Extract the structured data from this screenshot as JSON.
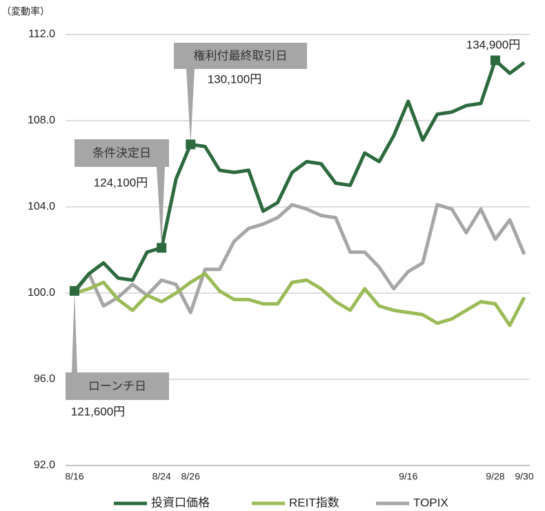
{
  "chart_data": {
    "type": "line",
    "y_axis_label": "（変動率）",
    "categories": [
      "8/16",
      null,
      null,
      null,
      null,
      null,
      "8/24",
      null,
      "8/26",
      null,
      null,
      null,
      null,
      null,
      null,
      null,
      null,
      null,
      null,
      null,
      null,
      null,
      null,
      "9/16",
      null,
      null,
      null,
      null,
      null,
      "9/28",
      null,
      "9/30"
    ],
    "series": [
      {
        "name": "投資口価格",
        "color": "#2d6a3e",
        "values": [
          100.1,
          100.9,
          101.4,
          100.7,
          100.6,
          101.9,
          102.1,
          105.3,
          106.9,
          106.8,
          105.7,
          105.6,
          105.7,
          103.8,
          104.2,
          105.6,
          106.1,
          106.0,
          105.1,
          105.0,
          106.5,
          106.1,
          107.3,
          108.9,
          107.1,
          108.3,
          108.4,
          108.7,
          108.8,
          110.8,
          110.2,
          110.7
        ]
      },
      {
        "name": "REIT指数",
        "color": "#9bbb59",
        "values": [
          100.0,
          100.2,
          100.5,
          99.7,
          99.2,
          99.9,
          99.6,
          100.0,
          100.5,
          100.9,
          100.1,
          99.7,
          99.7,
          99.5,
          99.5,
          100.5,
          100.6,
          100.2,
          99.6,
          99.2,
          100.2,
          99.4,
          99.2,
          99.1,
          99.0,
          98.6,
          98.8,
          99.2,
          99.6,
          99.5,
          98.5,
          99.8
        ]
      },
      {
        "name": "TOPIX",
        "color": "#a6a6a6",
        "values": [
          100.0,
          100.9,
          99.4,
          99.8,
          100.4,
          99.9,
          100.6,
          100.4,
          99.1,
          101.1,
          101.1,
          102.4,
          103.0,
          103.2,
          103.5,
          104.1,
          103.9,
          103.6,
          103.5,
          101.9,
          101.9,
          101.2,
          100.2,
          101.0,
          101.4,
          104.1,
          103.9,
          102.8,
          103.9,
          102.5,
          103.4,
          101.8
        ]
      }
    ],
    "annotations": [
      {
        "label": "ローンチ日",
        "price": "121,600円"
      },
      {
        "label": "条件決定日",
        "price": "124,100円"
      },
      {
        "label": "権利付最終取引日",
        "price": "130,100円"
      },
      {
        "price": "134,900円"
      }
    ],
    "ylim": [
      92,
      112
    ],
    "yticks": [
      {
        "value": 92,
        "label": "92.0"
      },
      {
        "value": 96,
        "label": "96.0"
      },
      {
        "value": 100,
        "label": "100.0"
      },
      {
        "value": 104,
        "label": "104.0"
      },
      {
        "value": 108,
        "label": "108.0"
      },
      {
        "value": 112,
        "label": "112.0"
      }
    ],
    "grid": true,
    "legend": "bottom"
  }
}
